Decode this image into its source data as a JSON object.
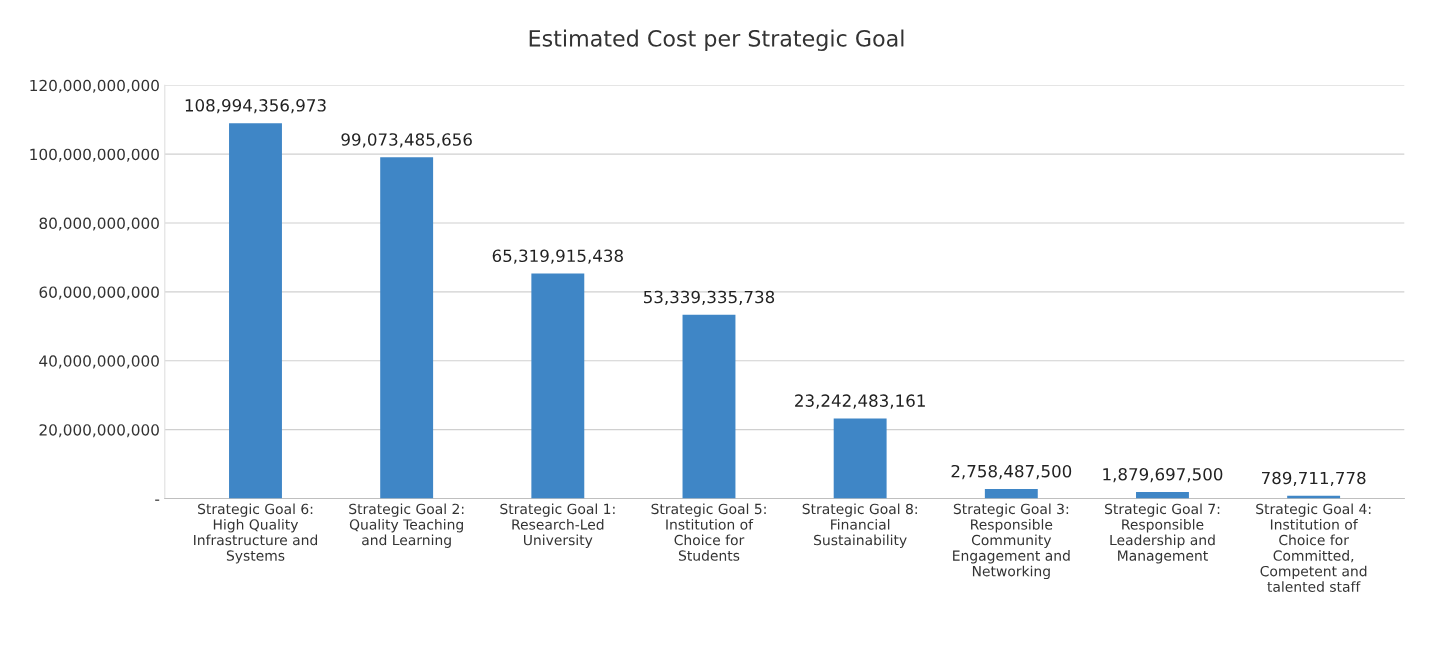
{
  "chart_data": {
    "type": "bar",
    "title": "Estimated Cost per Strategic Goal",
    "categories": [
      "Strategic Goal 6:\nHigh Quality\nInfrastructure and\nSystems",
      "Strategic Goal 2:\nQuality Teaching\nand Learning",
      "Strategic Goal 1:\nResearch-Led\nUniversity",
      "Strategic Goal 5:\nInstitution of\nChoice for\nStudents",
      "Strategic Goal 8:\nFinancial\nSustainability",
      "Strategic Goal 3:\nResponsible\nCommunity\nEngagement and\nNetworking",
      "Strategic Goal 7:\nResponsible\nLeadership and\nManagement",
      "Strategic Goal 4:\nInstitution of\nChoice for\nCommitted,\nCompetent and\ntalented staff"
    ],
    "values": [
      108994356973,
      99073485656,
      65319915438,
      53339335738,
      23242483161,
      2758487500,
      1879697500,
      789711778
    ],
    "color": "#3f86c6",
    "ylim": [
      0,
      120000000000
    ],
    "yticks": [
      {
        "value": 0,
        "label": "-"
      },
      {
        "value": 20000000000,
        "label": "20,000,000,000"
      },
      {
        "value": 40000000000,
        "label": "40,000,000,000"
      },
      {
        "value": 60000000000,
        "label": "60,000,000,000"
      },
      {
        "value": 80000000000,
        "label": "80,000,000,000"
      },
      {
        "value": 100000000000,
        "label": "100,000,000,000"
      },
      {
        "value": 120000000000,
        "label": "120,000,000,000"
      }
    ],
    "value_labels": [
      "108,994,356,973",
      "99,073,485,656",
      "65,319,915,438",
      "53,339,335,738",
      "23,242,483,161",
      "2,758,487,500",
      "1,879,697,500",
      "789,711,778"
    ],
    "grid": "y",
    "legend": false
  }
}
